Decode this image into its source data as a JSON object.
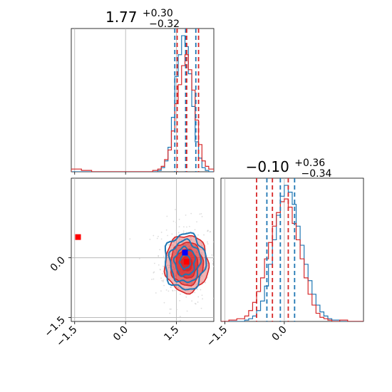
{
  "chart_data": [
    {
      "type": "histogram",
      "panel": "top-left",
      "parameter_index": 0,
      "title": {
        "median": "1.77",
        "plus": "+0.30",
        "minus": "−0.32"
      },
      "xlim": [
        -1.6,
        2.6
      ],
      "grid": true,
      "bin_edges": [
        -1.6,
        -1.3,
        -1.0,
        -0.7,
        -0.4,
        -0.1,
        0.2,
        0.5,
        0.8,
        0.95,
        1.05,
        1.15,
        1.25,
        1.35,
        1.45,
        1.55,
        1.65,
        1.75,
        1.85,
        1.95,
        2.05,
        2.15,
        2.25,
        2.35,
        2.45,
        2.6
      ],
      "series": [
        {
          "color": "#1f77b4",
          "counts": [
            0,
            0,
            0,
            0,
            0,
            0,
            0,
            0,
            0,
            1,
            3,
            8,
            18,
            40,
            70,
            86,
            100,
            92,
            72,
            48,
            22,
            10,
            3,
            1,
            0
          ],
          "quantiles": [
            1.45,
            1.77,
            2.07
          ]
        },
        {
          "color": "#d62728",
          "counts": [
            2,
            1,
            0,
            0,
            0,
            0,
            0,
            0,
            1,
            2,
            4,
            9,
            16,
            30,
            50,
            64,
            78,
            86,
            75,
            60,
            38,
            20,
            8,
            4,
            2
          ],
          "quantiles": [
            1.52,
            1.8,
            2.15
          ]
        }
      ]
    },
    {
      "type": "contour",
      "panel": "bottom-left",
      "xlim": [
        -1.6,
        2.6
      ],
      "ylim": [
        -1.6,
        2.0
      ],
      "xticks": [
        "−1.5",
        "0.0",
        "1.5"
      ],
      "yticks": [
        "−1.5",
        "0.0"
      ],
      "grid": true,
      "series": [
        {
          "color": "#1f77b4",
          "center": [
            1.75,
            -0.1
          ],
          "sigma": [
            0.3,
            0.35
          ],
          "filled": false
        },
        {
          "color": "#d62728",
          "center": [
            1.8,
            -0.15
          ],
          "sigma": [
            0.32,
            0.36
          ],
          "filled": true
        }
      ],
      "markers": [
        {
          "color": "#0000ff",
          "x": 1.75,
          "y": 0.13
        },
        {
          "color": "#ff0000",
          "x": 1.8,
          "y": -0.1
        },
        {
          "color": "#ff0000",
          "x": -1.4,
          "y": 0.52
        }
      ]
    },
    {
      "type": "histogram",
      "panel": "bottom-right",
      "parameter_index": 1,
      "title": {
        "median": "−0.10",
        "plus": "+0.36",
        "minus": "−0.34"
      },
      "xlim": [
        -1.6,
        2.0
      ],
      "xticks": [
        "−1.5",
        "0.0"
      ],
      "grid": true,
      "bin_edges": [
        -1.6,
        -1.4,
        -1.2,
        -1.0,
        -0.9,
        -0.8,
        -0.7,
        -0.6,
        -0.5,
        -0.4,
        -0.3,
        -0.2,
        -0.1,
        0.0,
        0.1,
        0.2,
        0.3,
        0.4,
        0.5,
        0.6,
        0.7,
        0.8,
        0.9,
        1.0,
        1.1,
        1.2,
        1.4,
        1.6,
        2.0
      ],
      "series": [
        {
          "color": "#1f77b4",
          "counts": [
            0,
            0,
            0,
            1,
            2,
            4,
            8,
            15,
            26,
            42,
            60,
            78,
            92,
            100,
            95,
            86,
            70,
            56,
            42,
            30,
            20,
            12,
            7,
            4,
            2,
            1,
            0,
            0
          ],
          "quantiles": [
            -0.44,
            -0.1,
            0.26
          ]
        },
        {
          "color": "#d62728",
          "counts": [
            0,
            1,
            2,
            4,
            8,
            14,
            22,
            32,
            46,
            58,
            70,
            80,
            88,
            90,
            84,
            72,
            60,
            46,
            32,
            20,
            12,
            6,
            3,
            2,
            1,
            0,
            1,
            0
          ],
          "quantiles": [
            -0.7,
            -0.3,
            0.1
          ]
        }
      ]
    }
  ]
}
